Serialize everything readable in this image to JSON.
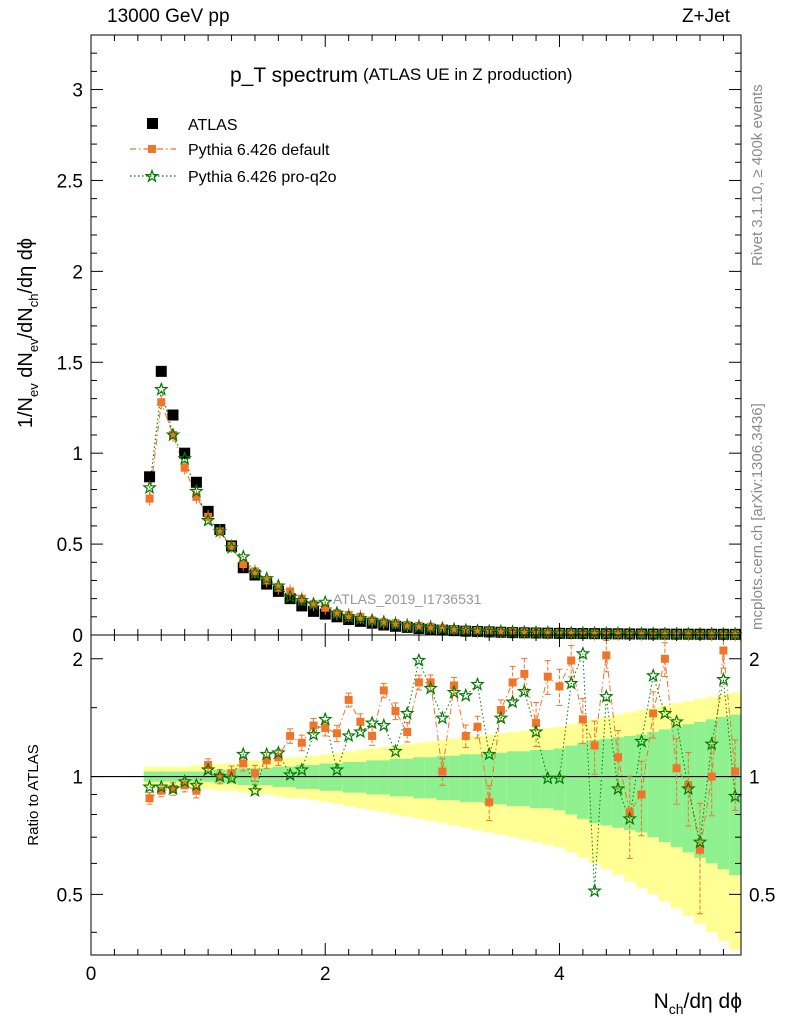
{
  "header": {
    "left": "13000 GeV pp",
    "right": "Z+Jet"
  },
  "side": {
    "rivet": "Rivet 3.1.10, ≥ 400k events",
    "mcplots": "mcplots.cern.ch [arXiv:1306.3436]"
  },
  "chart_data": [
    {
      "type": "scatter",
      "title": "p_T spectrum",
      "subtitle": "(ATLAS UE in Z production)",
      "analysis_label": "ATLAS_2019_I1736531",
      "xlabel": "N_ch/dη dϕ",
      "ylabel": "1/N_ev dN_ev/dN_ch/dη dϕ",
      "xlim": [
        0,
        5.55
      ],
      "ylim": [
        0,
        3.3
      ],
      "yticks": [
        0,
        0.5,
        1,
        1.5,
        2,
        2.5,
        3
      ],
      "ytick_labels": [
        "0",
        "0.5",
        "1",
        "1.5",
        "2",
        "2.5",
        "3"
      ],
      "legend": [
        "ATLAS",
        "Pythia 6.426 default",
        "Pythia 6.426 pro-q2o"
      ],
      "legend_position": "top-left",
      "x": [
        0.5,
        0.6,
        0.7,
        0.8,
        0.9,
        1.0,
        1.1,
        1.2,
        1.3,
        1.4,
        1.5,
        1.6,
        1.7,
        1.8,
        1.9,
        2.0,
        2.1,
        2.2,
        2.3,
        2.4,
        2.5,
        2.6,
        2.7,
        2.8,
        2.9,
        3.0,
        3.1,
        3.2,
        3.3,
        3.4,
        3.5,
        3.6,
        3.7,
        3.8,
        3.9,
        4.0,
        4.1,
        4.2,
        4.3,
        4.4,
        4.5,
        4.6,
        4.7,
        4.8,
        4.9,
        5.0,
        5.1,
        5.2,
        5.3,
        5.4,
        5.5
      ],
      "series": [
        {
          "name": "ATLAS",
          "values": [
            0.87,
            1.45,
            1.21,
            1.0,
            0.84,
            0.68,
            0.58,
            0.49,
            0.37,
            0.33,
            0.28,
            0.24,
            0.2,
            0.16,
            0.13,
            0.115,
            0.1,
            0.085,
            0.075,
            0.065,
            0.055,
            0.048,
            0.042,
            0.036,
            0.031,
            0.027,
            0.024,
            0.021,
            0.019,
            0.017,
            0.015,
            0.013,
            0.012,
            0.011,
            0.01,
            0.009,
            0.0085,
            0.008,
            0.0075,
            0.007,
            0.0065,
            0.006,
            0.0055,
            0.005,
            0.0048,
            0.0046,
            0.0044,
            0.0042,
            0.004,
            0.0038,
            0.0036
          ]
        },
        {
          "name": "Pythia 6.426 default",
          "values": [
            0.75,
            1.28,
            1.1,
            0.92,
            0.76,
            0.65,
            0.57,
            0.49,
            0.39,
            0.35,
            0.3,
            0.26,
            0.24,
            0.2,
            0.17,
            0.15,
            0.12,
            0.11,
            0.1,
            0.08,
            0.07,
            0.065,
            0.055,
            0.05,
            0.045,
            0.035,
            0.03,
            0.025,
            0.022,
            0.02,
            0.018,
            0.017,
            0.015,
            0.014,
            0.012,
            0.011,
            0.01,
            0.009,
            0.008,
            0.0075,
            0.007,
            0.0065,
            0.006,
            0.0055,
            0.005,
            0.0048,
            0.0046,
            0.0044,
            0.0042,
            0.004,
            0.0038
          ]
        },
        {
          "name": "Pythia 6.426 pro-q2o",
          "values": [
            0.81,
            1.35,
            1.1,
            0.97,
            0.79,
            0.63,
            0.57,
            0.48,
            0.43,
            0.34,
            0.31,
            0.27,
            0.21,
            0.19,
            0.17,
            0.18,
            0.12,
            0.1,
            0.09,
            0.08,
            0.07,
            0.06,
            0.05,
            0.045,
            0.04,
            0.035,
            0.03,
            0.025,
            0.022,
            0.02,
            0.018,
            0.016,
            0.014,
            0.013,
            0.012,
            0.011,
            0.01,
            0.009,
            0.008,
            0.0075,
            0.007,
            0.0065,
            0.006,
            0.0055,
            0.005,
            0.0048,
            0.0046,
            0.0044,
            0.0042,
            0.004,
            0.0038
          ]
        }
      ]
    },
    {
      "type": "scatter",
      "title": "Ratio to ATLAS",
      "ylabel": "Ratio to ATLAS",
      "xlabel": "N_ch/dη dϕ",
      "xlim": [
        0,
        5.55
      ],
      "ylim": [
        0.35,
        2.3
      ],
      "yticks": [
        0.5,
        1,
        2
      ],
      "ytick_labels": [
        "0.5",
        "1",
        "2"
      ],
      "xticks": [
        0,
        2,
        4
      ],
      "xtick_labels": [
        "0",
        "2",
        "4"
      ],
      "x": [
        0.5,
        0.6,
        0.7,
        0.8,
        0.9,
        1.0,
        1.1,
        1.2,
        1.3,
        1.4,
        1.5,
        1.6,
        1.7,
        1.8,
        1.9,
        2.0,
        2.1,
        2.2,
        2.3,
        2.4,
        2.5,
        2.6,
        2.7,
        2.8,
        2.9,
        3.0,
        3.1,
        3.2,
        3.3,
        3.4,
        3.5,
        3.6,
        3.7,
        3.8,
        3.9,
        4.0,
        4.1,
        4.2,
        4.3,
        4.4,
        4.5,
        4.6,
        4.7,
        4.8,
        4.9,
        5.0,
        5.1,
        5.2,
        5.3,
        5.4,
        5.5
      ],
      "band_green_halfwidth": [
        0.03,
        0.03,
        0.03,
        0.03,
        0.03,
        0.03,
        0.04,
        0.04,
        0.05,
        0.05,
        0.05,
        0.06,
        0.06,
        0.07,
        0.07,
        0.08,
        0.08,
        0.09,
        0.09,
        0.1,
        0.1,
        0.11,
        0.11,
        0.12,
        0.12,
        0.13,
        0.13,
        0.14,
        0.14,
        0.15,
        0.15,
        0.16,
        0.16,
        0.17,
        0.17,
        0.18,
        0.2,
        0.22,
        0.24,
        0.25,
        0.26,
        0.27,
        0.28,
        0.3,
        0.32,
        0.34,
        0.36,
        0.38,
        0.4,
        0.42,
        0.44
      ],
      "band_yellow_halfwidth": [
        0.06,
        0.06,
        0.06,
        0.06,
        0.07,
        0.07,
        0.08,
        0.08,
        0.09,
        0.1,
        0.1,
        0.11,
        0.12,
        0.12,
        0.13,
        0.14,
        0.15,
        0.16,
        0.17,
        0.18,
        0.19,
        0.2,
        0.21,
        0.22,
        0.23,
        0.24,
        0.25,
        0.26,
        0.27,
        0.28,
        0.29,
        0.3,
        0.31,
        0.32,
        0.33,
        0.34,
        0.36,
        0.38,
        0.4,
        0.42,
        0.44,
        0.46,
        0.48,
        0.5,
        0.52,
        0.54,
        0.56,
        0.58,
        0.6,
        0.62,
        0.64
      ],
      "series": [
        {
          "name": "Pythia 6.426 default",
          "values": [
            0.88,
            0.92,
            0.93,
            0.95,
            0.92,
            1.07,
            1.0,
            1.02,
            1.08,
            1.02,
            1.1,
            1.12,
            1.27,
            1.22,
            1.35,
            1.33,
            1.29,
            1.57,
            1.38,
            1.27,
            1.66,
            1.47,
            1.3,
            1.74,
            1.74,
            1.03,
            1.71,
            1.27,
            1.34,
            0.86,
            1.48,
            1.74,
            1.83,
            1.37,
            1.8,
            1.7,
            1.98,
            1.4,
            1.2,
            2.04,
            1.12,
            0.81,
            0.9,
            1.45,
            2.0,
            1.05,
            0.95,
            0.65,
            1.0,
            2.1,
            1.03
          ]
        },
        {
          "name": "Pythia 6.426 pro-q2o",
          "values": [
            0.94,
            0.94,
            0.93,
            0.97,
            0.95,
            1.04,
            1.0,
            0.99,
            1.14,
            0.92,
            1.14,
            1.15,
            1.01,
            1.04,
            1.28,
            1.4,
            1.04,
            1.27,
            1.3,
            1.37,
            1.35,
            1.16,
            1.45,
            1.98,
            1.68,
            1.41,
            1.64,
            1.61,
            1.72,
            1.14,
            1.41,
            1.55,
            1.65,
            1.3,
            0.99,
            0.99,
            1.73,
            2.06,
            0.51,
            1.6,
            0.93,
            0.78,
            1.23,
            1.81,
            1.45,
            1.38,
            0.93,
            0.68,
            1.21,
            1.77,
            0.89
          ]
        }
      ]
    }
  ]
}
